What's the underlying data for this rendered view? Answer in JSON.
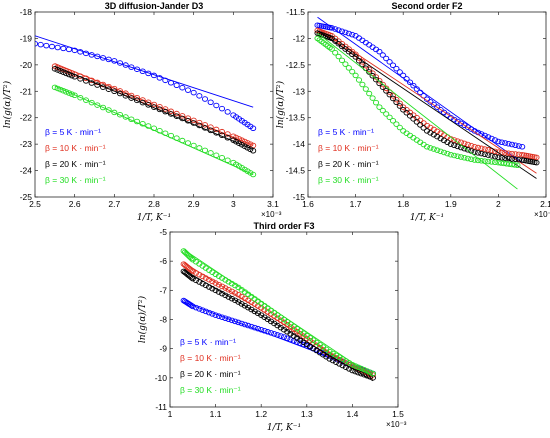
{
  "chart_data": [
    {
      "type": "scatter",
      "title": "3D diffusion-Jander D3",
      "xlabel": "1/T, K⁻¹",
      "ylabel": "ln(g(α)/T²)",
      "x_exponent": "×10⁻³",
      "xlim": [
        2.5,
        3.1
      ],
      "ylim": [
        -25,
        -18
      ],
      "xticks": [
        "2.5",
        "2.6",
        "2.7",
        "2.8",
        "2.9",
        "3",
        "3.1"
      ],
      "yticks": [
        "-25",
        "-24",
        "-23",
        "-22",
        "-21",
        "-20",
        "-19",
        "-18"
      ],
      "legend_position": "bottom-left",
      "series": [
        {
          "name": "β = 5 K · min⁻¹",
          "color": "#0000ff",
          "x": [
            2.5,
            2.6,
            2.7,
            2.8,
            2.9,
            3.0,
            3.05
          ],
          "y": [
            -19.2,
            -19.45,
            -19.85,
            -20.4,
            -21.05,
            -21.9,
            -22.4
          ],
          "fit": [
            [
              2.5,
              -18.9
            ],
            [
              3.05,
              -21.6
            ]
          ]
        },
        {
          "name": "β = 10 K · min⁻¹",
          "color": "#e03020",
          "x": [
            2.55,
            2.6,
            2.7,
            2.8,
            2.9,
            3.0,
            3.05
          ],
          "y": [
            -20.05,
            -20.35,
            -20.9,
            -21.5,
            -22.1,
            -22.7,
            -23.05
          ],
          "fit": [
            [
              2.55,
              -19.95
            ],
            [
              3.05,
              -23.05
            ]
          ]
        },
        {
          "name": "β = 20 K · min⁻¹",
          "color": "#000000",
          "x": [
            2.55,
            2.6,
            2.7,
            2.8,
            2.9,
            3.0,
            3.05
          ],
          "y": [
            -20.15,
            -20.45,
            -21.0,
            -21.6,
            -22.2,
            -22.85,
            -23.25
          ],
          "fit": [
            [
              2.55,
              -20.05
            ],
            [
              3.05,
              -23.2
            ]
          ]
        },
        {
          "name": "β = 30 K · min⁻¹",
          "color": "#22dd22",
          "x": [
            2.55,
            2.6,
            2.7,
            2.8,
            2.9,
            3.0,
            3.05
          ],
          "y": [
            -20.85,
            -21.15,
            -21.8,
            -22.4,
            -23.05,
            -23.7,
            -24.15
          ],
          "fit": [
            [
              2.55,
              -20.8
            ],
            [
              3.05,
              -24.15
            ]
          ]
        }
      ]
    },
    {
      "type": "scatter",
      "title": "Second order F2",
      "xlabel": "1/T, K⁻¹",
      "ylabel": "ln(g(α)/T²)",
      "x_exponent": "×10⁻³",
      "xlim": [
        1.6,
        2.1
      ],
      "ylim": [
        -15,
        -11.5
      ],
      "xticks": [
        "1.6",
        "1.7",
        "1.8",
        "1.9",
        "2",
        "2.1"
      ],
      "yticks": [
        "-15",
        "-14.5",
        "-14",
        "-13.5",
        "-13",
        "-12.5",
        "-12",
        "-11.5"
      ],
      "legend_position": "bottom-left",
      "series": [
        {
          "name": "β = 5 K · min⁻¹",
          "color": "#0000ff",
          "x": [
            1.62,
            1.65,
            1.7,
            1.75,
            1.8,
            1.85,
            1.9,
            1.95,
            2.0,
            2.05
          ],
          "y": [
            -11.75,
            -11.8,
            -11.95,
            -12.25,
            -12.7,
            -13.15,
            -13.5,
            -13.75,
            -13.95,
            -14.05
          ],
          "fit": [
            [
              1.62,
              -11.6
            ],
            [
              2.05,
              -14.35
            ]
          ]
        },
        {
          "name": "β = 10 K · min⁻¹",
          "color": "#e03020",
          "x": [
            1.62,
            1.65,
            1.7,
            1.75,
            1.8,
            1.85,
            1.9,
            1.95,
            2.0,
            2.05,
            2.08
          ],
          "y": [
            -11.85,
            -11.95,
            -12.3,
            -12.8,
            -13.3,
            -13.65,
            -13.9,
            -14.05,
            -14.15,
            -14.2,
            -14.25
          ],
          "fit": [
            [
              1.62,
              -11.8
            ],
            [
              2.08,
              -14.55
            ]
          ]
        },
        {
          "name": "β = 20 K · min⁻¹",
          "color": "#000000",
          "x": [
            1.62,
            1.65,
            1.7,
            1.75,
            1.8,
            1.85,
            1.9,
            1.95,
            2.0,
            2.05,
            2.08
          ],
          "y": [
            -11.9,
            -12.0,
            -12.35,
            -12.85,
            -13.35,
            -13.75,
            -14.0,
            -14.15,
            -14.25,
            -14.3,
            -14.35
          ],
          "fit": [
            [
              1.62,
              -11.85
            ],
            [
              2.08,
              -14.65
            ]
          ]
        },
        {
          "name": "β = 30 K · min⁻¹",
          "color": "#22dd22",
          "x": [
            1.62,
            1.65,
            1.7,
            1.75,
            1.8,
            1.85,
            1.9,
            1.95,
            2.0,
            2.04
          ],
          "y": [
            -12.0,
            -12.2,
            -12.7,
            -13.3,
            -13.75,
            -14.05,
            -14.2,
            -14.3,
            -14.35,
            -14.4
          ],
          "fit": [
            [
              1.62,
              -11.9
            ],
            [
              2.04,
              -14.85
            ]
          ]
        }
      ]
    },
    {
      "type": "scatter",
      "title": "Third order F3",
      "xlabel": "1/T, K⁻¹",
      "ylabel": "ln(g(α)/T²)",
      "x_exponent": "×10⁻³",
      "xlim": [
        1.0,
        1.5
      ],
      "ylim": [
        -11,
        -5
      ],
      "xticks": [
        "1",
        "1.1",
        "1.2",
        "1.3",
        "1.4",
        "1.5"
      ],
      "yticks": [
        "-11",
        "-10",
        "-9",
        "-8",
        "-7",
        "-6",
        "-5"
      ],
      "legend_position": "bottom-left",
      "series": [
        {
          "name": "β = 5 K · min⁻¹",
          "color": "#0000ff",
          "x": [
            1.03,
            1.05,
            1.1,
            1.15,
            1.2,
            1.25,
            1.3,
            1.35,
            1.4,
            1.445
          ],
          "y": [
            -7.35,
            -7.55,
            -7.85,
            -8.1,
            -8.35,
            -8.6,
            -8.9,
            -9.25,
            -9.6,
            -9.85
          ],
          "fit": [
            [
              1.03,
              -7.4
            ],
            [
              1.445,
              -9.85
            ]
          ]
        },
        {
          "name": "β = 10 K · min⁻¹",
          "color": "#e03020",
          "x": [
            1.03,
            1.05,
            1.1,
            1.15,
            1.2,
            1.25,
            1.3,
            1.35,
            1.4,
            1.445
          ],
          "y": [
            -6.1,
            -6.35,
            -6.75,
            -7.15,
            -7.6,
            -8.1,
            -8.65,
            -9.2,
            -9.6,
            -9.9
          ],
          "fit": [
            [
              1.03,
              -6.05
            ],
            [
              1.445,
              -10.05
            ]
          ]
        },
        {
          "name": "β = 20 K · min⁻¹",
          "color": "#000000",
          "x": [
            1.03,
            1.05,
            1.1,
            1.15,
            1.2,
            1.25,
            1.3,
            1.35,
            1.4,
            1.445
          ],
          "y": [
            -6.35,
            -6.6,
            -7.0,
            -7.4,
            -7.85,
            -8.35,
            -8.85,
            -9.35,
            -9.75,
            -10.0
          ],
          "fit": [
            [
              1.03,
              -6.3
            ],
            [
              1.445,
              -10.1
            ]
          ]
        },
        {
          "name": "β = 30 K · min⁻¹",
          "color": "#22dd22",
          "x": [
            1.03,
            1.05,
            1.1,
            1.15,
            1.2,
            1.25,
            1.3,
            1.35,
            1.4,
            1.445
          ],
          "y": [
            -5.65,
            -5.95,
            -6.45,
            -6.9,
            -7.45,
            -8.0,
            -8.55,
            -9.1,
            -9.55,
            -9.85
          ],
          "fit": [
            [
              1.03,
              -5.6
            ],
            [
              1.445,
              -9.95
            ]
          ]
        }
      ]
    }
  ]
}
